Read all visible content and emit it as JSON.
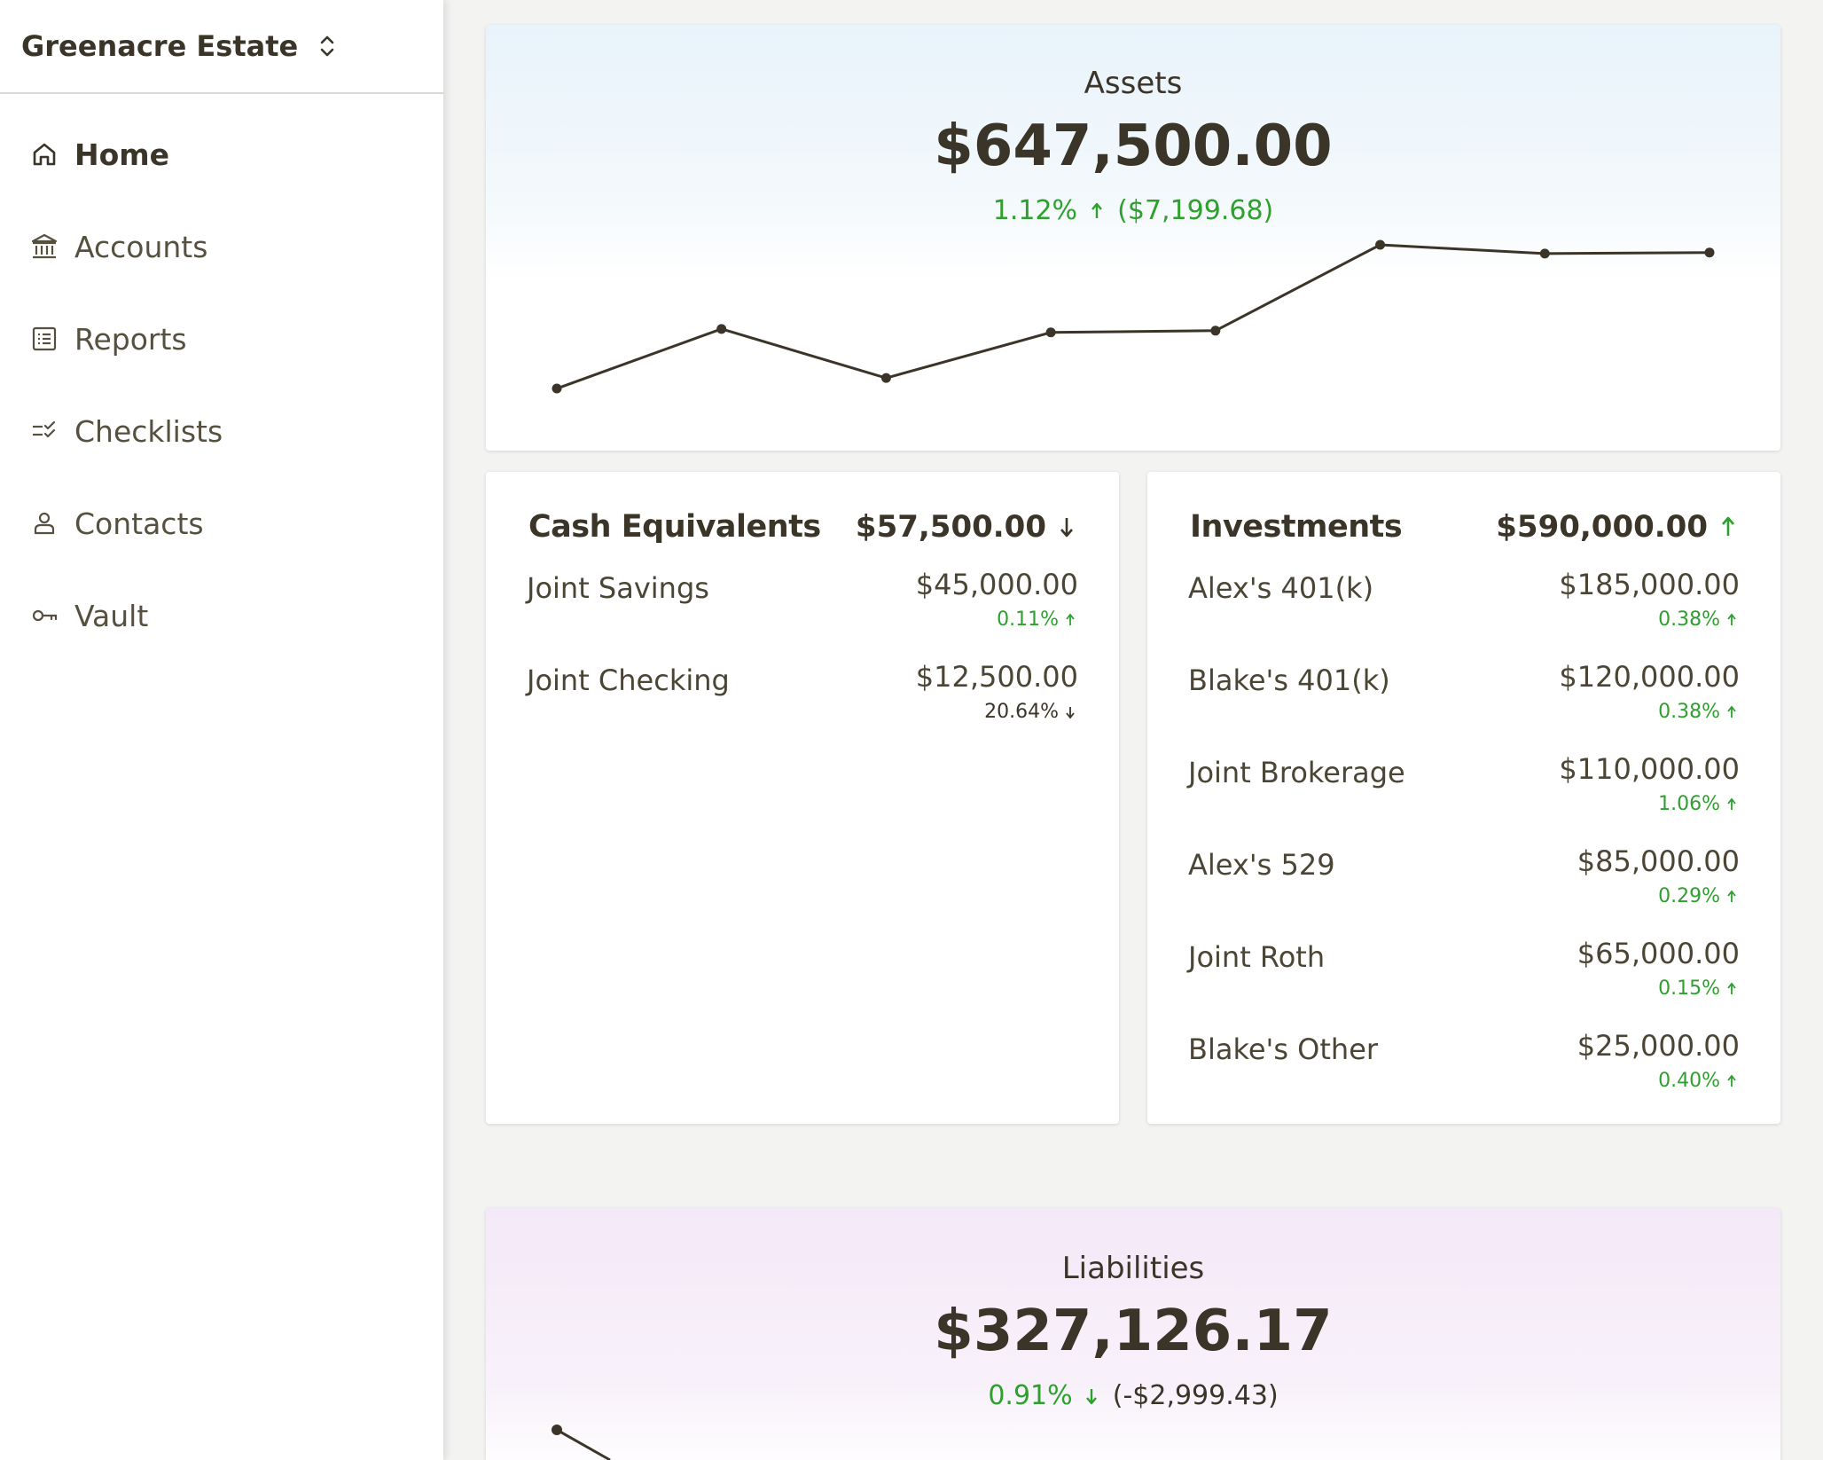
{
  "sidebar": {
    "estate_name": "Greenacre Estate",
    "nav": [
      {
        "label": "Home",
        "icon": "home-icon",
        "active": true
      },
      {
        "label": "Accounts",
        "icon": "bank-icon"
      },
      {
        "label": "Reports",
        "icon": "report-list-icon"
      },
      {
        "label": "Checklists",
        "icon": "checklist-icon"
      },
      {
        "label": "Contacts",
        "icon": "person-icon"
      },
      {
        "label": "Vault",
        "icon": "key-icon"
      }
    ]
  },
  "assets": {
    "title": "Assets",
    "total": "$647,500.00",
    "change_pct": "1.12%",
    "change_amt": "($7,199.68)",
    "trend": "up",
    "chart_data": {
      "type": "line",
      "values": [
        613000,
        630000,
        616000,
        629000,
        629500,
        654000,
        651500,
        651800
      ]
    }
  },
  "cash": {
    "title": "Cash Equivalents",
    "total": "$57,500.00",
    "trend": "down",
    "accounts": [
      {
        "name": "Joint Savings",
        "balance": "$45,000.00",
        "change": "0.11%",
        "trend": "up"
      },
      {
        "name": "Joint Checking",
        "balance": "$12,500.00",
        "change": "20.64%",
        "trend": "down"
      }
    ]
  },
  "investments": {
    "title": "Investments",
    "total": "$590,000.00",
    "trend": "up",
    "accounts": [
      {
        "name": "Alex's 401(k)",
        "balance": "$185,000.00",
        "change": "0.38%",
        "trend": "up"
      },
      {
        "name": "Blake's 401(k)",
        "balance": "$120,000.00",
        "change": "0.38%",
        "trend": "up"
      },
      {
        "name": "Joint Brokerage",
        "balance": "$110,000.00",
        "change": "1.06%",
        "trend": "up"
      },
      {
        "name": "Alex's 529",
        "balance": "$85,000.00",
        "change": "0.29%",
        "trend": "up"
      },
      {
        "name": "Joint Roth",
        "balance": "$65,000.00",
        "change": "0.15%",
        "trend": "up"
      },
      {
        "name": "Blake's Other",
        "balance": "$25,000.00",
        "change": "0.40%",
        "trend": "up"
      }
    ]
  },
  "liabilities": {
    "title": "Liabilities",
    "total": "$327,126.17",
    "change_pct": "0.91%",
    "change_amt": "(-$2,999.43)",
    "trend": "down",
    "colors": {
      "up": "#2ea02e",
      "neutral": "#3a3528"
    }
  }
}
